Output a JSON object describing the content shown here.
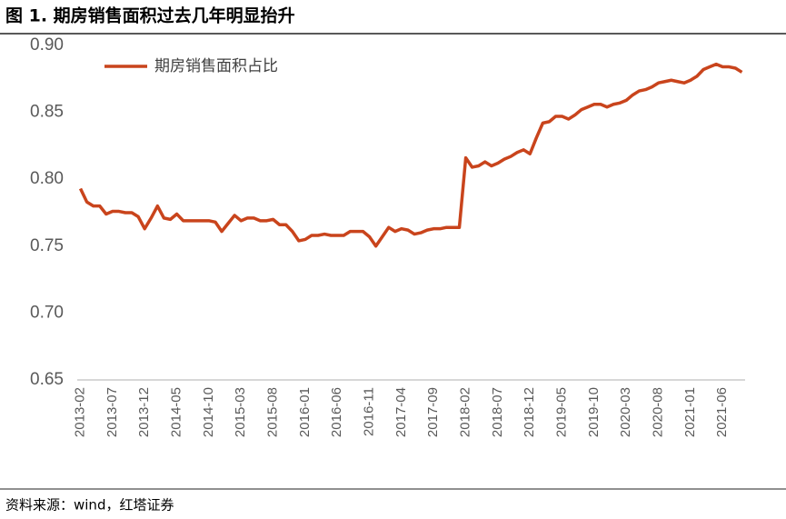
{
  "chart_data": {
    "type": "line",
    "title": "图 1. 期房销售面积过去几年明显抬升",
    "source": "资料来源：wind，红塔证券",
    "categories": [
      "2013-02",
      null,
      null,
      null,
      null,
      "2013-07",
      null,
      null,
      null,
      null,
      "2013-12",
      null,
      null,
      null,
      null,
      "2014-05",
      null,
      null,
      null,
      null,
      "2014-10",
      null,
      null,
      null,
      null,
      "2015-03",
      null,
      null,
      null,
      null,
      "2015-08",
      null,
      null,
      null,
      null,
      "2016-01",
      null,
      null,
      null,
      null,
      "2016-06",
      null,
      null,
      null,
      null,
      "2016-11",
      null,
      null,
      null,
      null,
      "2017-04",
      null,
      null,
      null,
      null,
      "2017-09",
      null,
      null,
      null,
      null,
      "2018-02",
      null,
      null,
      null,
      null,
      "2018-07",
      null,
      null,
      null,
      null,
      "2018-12",
      null,
      null,
      null,
      null,
      "2019-05",
      null,
      null,
      null,
      null,
      "2019-10",
      null,
      null,
      null,
      null,
      "2020-03",
      null,
      null,
      null,
      null,
      "2020-08",
      null,
      null,
      null,
      null,
      "2021-01",
      null,
      null,
      null,
      null,
      "2021-06",
      null,
      null,
      null
    ],
    "series": [
      {
        "name": "期房销售面积占比",
        "color": "#c9441c",
        "values": [
          0.793,
          0.783,
          0.78,
          0.78,
          0.774,
          0.776,
          0.776,
          0.775,
          0.775,
          0.772,
          0.763,
          0.771,
          0.78,
          0.771,
          0.77,
          0.774,
          0.769,
          0.769,
          0.769,
          0.769,
          0.769,
          0.768,
          0.761,
          0.767,
          0.773,
          0.769,
          0.771,
          0.771,
          0.769,
          0.769,
          0.77,
          0.766,
          0.766,
          0.761,
          0.754,
          0.755,
          0.758,
          0.758,
          0.759,
          0.758,
          0.758,
          0.758,
          0.761,
          0.761,
          0.761,
          0.757,
          0.75,
          0.757,
          0.764,
          0.761,
          0.763,
          0.762,
          0.759,
          0.76,
          0.762,
          0.763,
          0.763,
          0.764,
          0.764,
          0.764,
          0.816,
          0.809,
          0.81,
          0.813,
          0.81,
          0.812,
          0.815,
          0.817,
          0.82,
          0.822,
          0.819,
          0.831,
          0.842,
          0.843,
          0.847,
          0.847,
          0.845,
          0.848,
          0.852,
          0.854,
          0.856,
          0.856,
          0.854,
          0.856,
          0.857,
          0.859,
          0.863,
          0.866,
          0.867,
          0.869,
          0.872,
          0.873,
          0.874,
          0.873,
          0.872,
          0.874,
          0.877,
          0.882,
          0.884,
          0.886,
          0.884,
          0.884,
          0.883,
          0.88
        ]
      }
    ],
    "ylim": [
      0.65,
      0.9
    ],
    "yticks": [
      0.65,
      {
        "value": 0.7,
        "label": "0.70"
      },
      0.75,
      {
        "value": 0.8,
        "label": "0.80"
      },
      0.85,
      {
        "value": 0.9,
        "label": "0.90"
      }
    ],
    "grid": false,
    "legend": "top-left"
  }
}
